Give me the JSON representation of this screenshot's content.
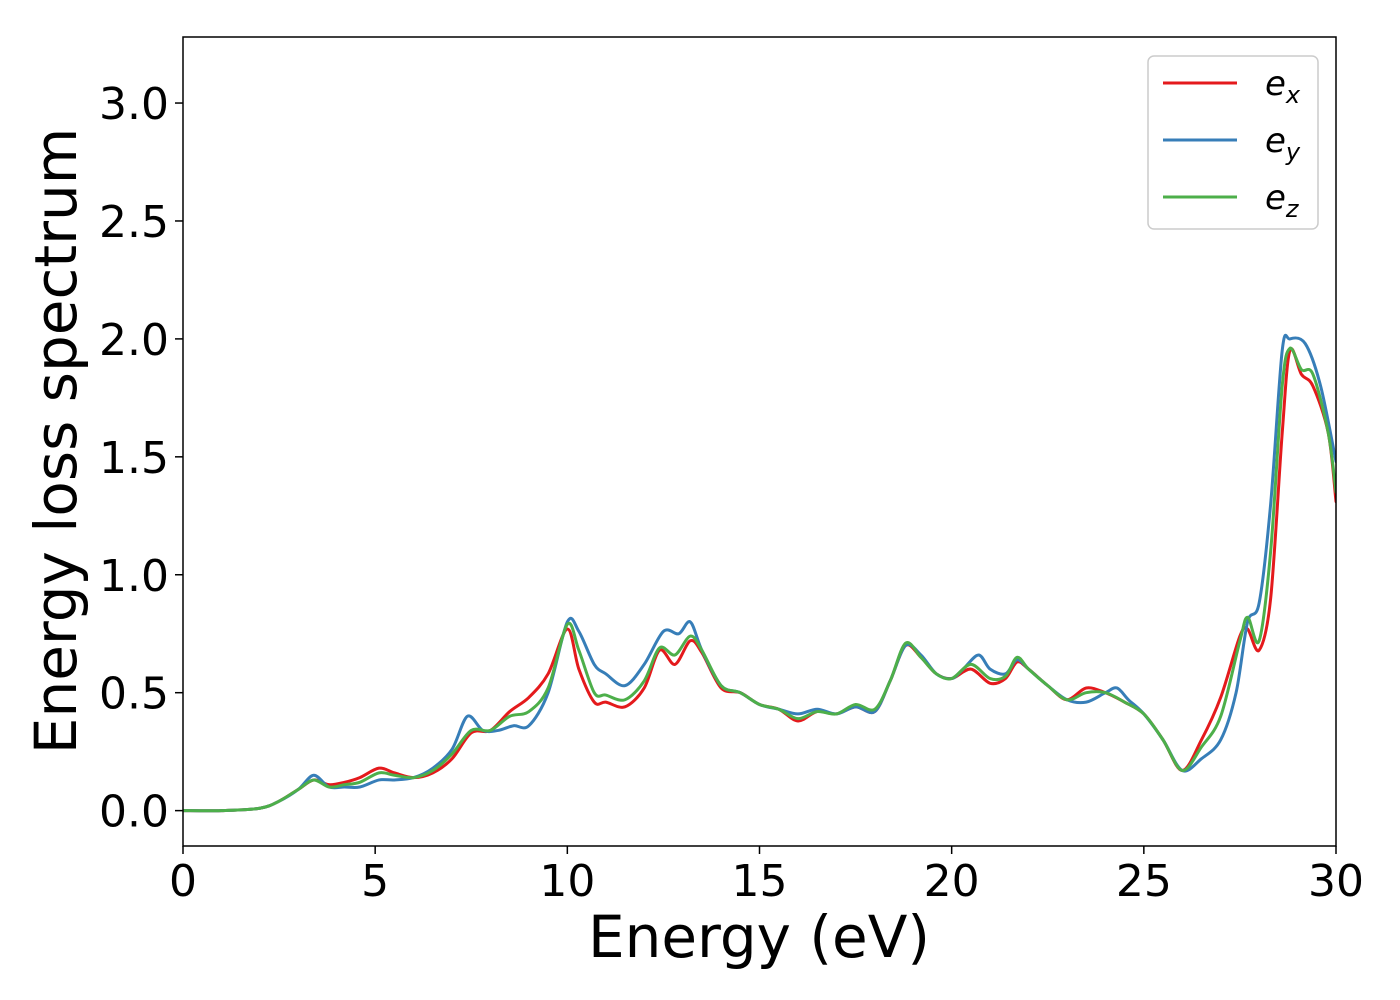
{
  "chart_data": {
    "type": "line",
    "title": "",
    "xlabel": "Energy (eV)",
    "ylabel": "Energy loss spectrum",
    "xlim": [
      0,
      30
    ],
    "ylim": [
      -0.15,
      3.28
    ],
    "xticks": [
      0,
      5,
      10,
      15,
      20,
      25,
      30
    ],
    "xtick_labels": [
      "0",
      "5",
      "10",
      "15",
      "20",
      "25",
      "30"
    ],
    "yticks": [
      0.0,
      0.5,
      1.0,
      1.5,
      2.0,
      2.5,
      3.0
    ],
    "ytick_labels": [
      "0.0",
      "0.5",
      "1.0",
      "1.5",
      "2.0",
      "2.5",
      "3.0"
    ],
    "grid": false,
    "legend": "top-right",
    "series": [
      {
        "name_base": "e",
        "name_sub": "x",
        "color": "#e41a1c",
        "points": [
          [
            0,
            0
          ],
          [
            1,
            0
          ],
          [
            2,
            0.01
          ],
          [
            2.5,
            0.04
          ],
          [
            3,
            0.09
          ],
          [
            3.4,
            0.13
          ],
          [
            3.8,
            0.11
          ],
          [
            4.2,
            0.12
          ],
          [
            4.6,
            0.14
          ],
          [
            5.1,
            0.18
          ],
          [
            5.5,
            0.16
          ],
          [
            6,
            0.14
          ],
          [
            6.5,
            0.16
          ],
          [
            7,
            0.22
          ],
          [
            7.5,
            0.33
          ],
          [
            8,
            0.34
          ],
          [
            8.5,
            0.42
          ],
          [
            9,
            0.48
          ],
          [
            9.5,
            0.58
          ],
          [
            10,
            0.77
          ],
          [
            10.3,
            0.6
          ],
          [
            10.7,
            0.46
          ],
          [
            11,
            0.46
          ],
          [
            11.5,
            0.44
          ],
          [
            12,
            0.52
          ],
          [
            12.4,
            0.68
          ],
          [
            12.8,
            0.62
          ],
          [
            13.2,
            0.72
          ],
          [
            13.5,
            0.67
          ],
          [
            14,
            0.52
          ],
          [
            14.5,
            0.5
          ],
          [
            15,
            0.45
          ],
          [
            15.5,
            0.43
          ],
          [
            16,
            0.38
          ],
          [
            16.5,
            0.42
          ],
          [
            17,
            0.41
          ],
          [
            17.5,
            0.44
          ],
          [
            18,
            0.42
          ],
          [
            18.4,
            0.55
          ],
          [
            18.8,
            0.7
          ],
          [
            19.2,
            0.65
          ],
          [
            19.6,
            0.58
          ],
          [
            20,
            0.56
          ],
          [
            20.5,
            0.6
          ],
          [
            21,
            0.54
          ],
          [
            21.4,
            0.56
          ],
          [
            21.7,
            0.63
          ],
          [
            22,
            0.6
          ],
          [
            22.5,
            0.53
          ],
          [
            23,
            0.47
          ],
          [
            23.5,
            0.52
          ],
          [
            24,
            0.5
          ],
          [
            24.5,
            0.46
          ],
          [
            25,
            0.41
          ],
          [
            25.5,
            0.3
          ],
          [
            26,
            0.17
          ],
          [
            26.5,
            0.3
          ],
          [
            27,
            0.48
          ],
          [
            27.5,
            0.74
          ],
          [
            27.7,
            0.77
          ],
          [
            28,
            0.68
          ],
          [
            28.3,
            0.9
          ],
          [
            28.6,
            1.6
          ],
          [
            28.8,
            1.95
          ],
          [
            29.1,
            1.85
          ],
          [
            29.4,
            1.8
          ],
          [
            29.8,
            1.6
          ],
          [
            30,
            1.31
          ]
        ]
      },
      {
        "name_base": "e",
        "name_sub": "y",
        "color": "#377eb8",
        "points": [
          [
            0,
            0
          ],
          [
            1,
            0
          ],
          [
            2,
            0.01
          ],
          [
            2.5,
            0.04
          ],
          [
            3,
            0.09
          ],
          [
            3.4,
            0.15
          ],
          [
            3.8,
            0.1
          ],
          [
            4.2,
            0.1
          ],
          [
            4.6,
            0.1
          ],
          [
            5.1,
            0.13
          ],
          [
            5.5,
            0.13
          ],
          [
            6,
            0.14
          ],
          [
            6.5,
            0.18
          ],
          [
            7,
            0.26
          ],
          [
            7.4,
            0.4
          ],
          [
            7.8,
            0.34
          ],
          [
            8.2,
            0.34
          ],
          [
            8.6,
            0.36
          ],
          [
            9,
            0.36
          ],
          [
            9.5,
            0.5
          ],
          [
            10,
            0.8
          ],
          [
            10.3,
            0.76
          ],
          [
            10.7,
            0.62
          ],
          [
            11,
            0.58
          ],
          [
            11.5,
            0.53
          ],
          [
            12,
            0.62
          ],
          [
            12.5,
            0.76
          ],
          [
            12.9,
            0.75
          ],
          [
            13.2,
            0.8
          ],
          [
            13.5,
            0.68
          ],
          [
            14,
            0.53
          ],
          [
            14.5,
            0.5
          ],
          [
            15,
            0.45
          ],
          [
            15.5,
            0.43
          ],
          [
            16,
            0.41
          ],
          [
            16.5,
            0.43
          ],
          [
            17,
            0.41
          ],
          [
            17.5,
            0.44
          ],
          [
            18,
            0.42
          ],
          [
            18.4,
            0.55
          ],
          [
            18.8,
            0.7
          ],
          [
            19.2,
            0.66
          ],
          [
            19.6,
            0.58
          ],
          [
            20,
            0.56
          ],
          [
            20.3,
            0.6
          ],
          [
            20.7,
            0.66
          ],
          [
            21,
            0.6
          ],
          [
            21.4,
            0.58
          ],
          [
            21.7,
            0.64
          ],
          [
            22,
            0.6
          ],
          [
            22.5,
            0.53
          ],
          [
            23,
            0.47
          ],
          [
            23.5,
            0.46
          ],
          [
            24,
            0.5
          ],
          [
            24.3,
            0.52
          ],
          [
            24.6,
            0.47
          ],
          [
            25,
            0.41
          ],
          [
            25.5,
            0.3
          ],
          [
            26,
            0.17
          ],
          [
            26.5,
            0.22
          ],
          [
            27,
            0.3
          ],
          [
            27.4,
            0.5
          ],
          [
            27.7,
            0.8
          ],
          [
            28,
            0.88
          ],
          [
            28.3,
            1.3
          ],
          [
            28.6,
            1.95
          ],
          [
            28.8,
            2.0
          ],
          [
            29.2,
            1.98
          ],
          [
            29.6,
            1.8
          ],
          [
            30,
            1.48
          ]
        ]
      },
      {
        "name_base": "e",
        "name_sub": "z",
        "color": "#4daf4a",
        "points": [
          [
            0,
            0
          ],
          [
            1,
            0
          ],
          [
            2,
            0.01
          ],
          [
            2.5,
            0.04
          ],
          [
            3,
            0.09
          ],
          [
            3.4,
            0.13
          ],
          [
            3.8,
            0.1
          ],
          [
            4.2,
            0.11
          ],
          [
            4.6,
            0.12
          ],
          [
            5.1,
            0.16
          ],
          [
            5.5,
            0.15
          ],
          [
            6,
            0.14
          ],
          [
            6.5,
            0.17
          ],
          [
            7,
            0.24
          ],
          [
            7.5,
            0.34
          ],
          [
            8,
            0.34
          ],
          [
            8.5,
            0.4
          ],
          [
            9,
            0.42
          ],
          [
            9.5,
            0.52
          ],
          [
            10,
            0.79
          ],
          [
            10.3,
            0.68
          ],
          [
            10.7,
            0.5
          ],
          [
            11,
            0.49
          ],
          [
            11.5,
            0.47
          ],
          [
            12,
            0.55
          ],
          [
            12.4,
            0.69
          ],
          [
            12.8,
            0.66
          ],
          [
            13.2,
            0.74
          ],
          [
            13.5,
            0.68
          ],
          [
            14,
            0.53
          ],
          [
            14.5,
            0.5
          ],
          [
            15,
            0.45
          ],
          [
            15.5,
            0.43
          ],
          [
            16,
            0.39
          ],
          [
            16.5,
            0.42
          ],
          [
            17,
            0.41
          ],
          [
            17.5,
            0.45
          ],
          [
            18,
            0.43
          ],
          [
            18.4,
            0.55
          ],
          [
            18.8,
            0.71
          ],
          [
            19.2,
            0.65
          ],
          [
            19.6,
            0.58
          ],
          [
            20,
            0.56
          ],
          [
            20.5,
            0.62
          ],
          [
            21,
            0.56
          ],
          [
            21.4,
            0.57
          ],
          [
            21.7,
            0.65
          ],
          [
            22,
            0.6
          ],
          [
            22.5,
            0.53
          ],
          [
            23,
            0.47
          ],
          [
            23.5,
            0.5
          ],
          [
            24,
            0.5
          ],
          [
            24.5,
            0.46
          ],
          [
            25,
            0.41
          ],
          [
            25.5,
            0.3
          ],
          [
            26,
            0.17
          ],
          [
            26.5,
            0.27
          ],
          [
            27,
            0.4
          ],
          [
            27.5,
            0.72
          ],
          [
            27.7,
            0.82
          ],
          [
            28,
            0.72
          ],
          [
            28.3,
            1.1
          ],
          [
            28.6,
            1.8
          ],
          [
            28.8,
            1.96
          ],
          [
            29.1,
            1.87
          ],
          [
            29.4,
            1.85
          ],
          [
            29.8,
            1.6
          ],
          [
            30,
            1.35
          ]
        ]
      }
    ]
  }
}
